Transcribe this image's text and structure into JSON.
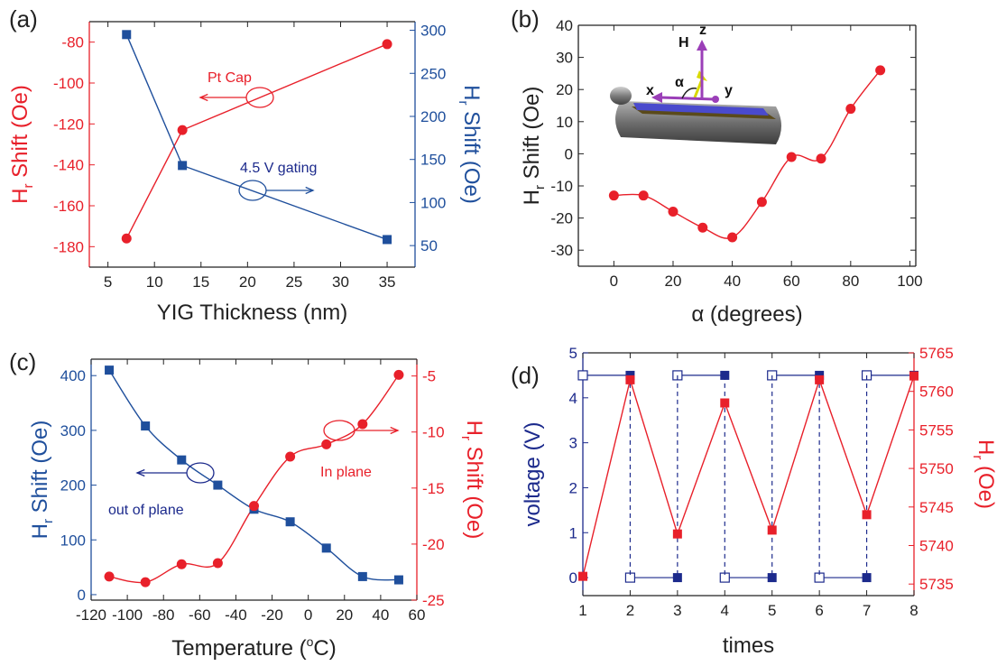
{
  "colors": {
    "red": "#e8202a",
    "blue": "#1f4f9c",
    "navy": "#1c2a8c",
    "black": "#222222"
  },
  "chart_data": [
    {
      "panel": "(a)",
      "type": "line",
      "xlabel": "YIG Thickness (nm)",
      "ylabel_left": {
        "main": "H",
        "sub": "r",
        "rest": " Shift (Oe)"
      },
      "ylabel_right": {
        "main": "H",
        "sub": "r",
        "rest": " Shift (Oe)"
      },
      "xlim": [
        3,
        38
      ],
      "ylim_left": [
        -190,
        -70
      ],
      "ylim_right": [
        25,
        310
      ],
      "xticks": [
        5,
        10,
        15,
        20,
        25,
        30,
        35
      ],
      "yticks_left": [
        -180,
        -160,
        -140,
        -120,
        -100,
        -80
      ],
      "yticks_right": [
        50,
        100,
        150,
        200,
        250,
        300
      ],
      "series": [
        {
          "name": "Pt Cap",
          "axis": "left",
          "marker": "circle",
          "x": [
            7,
            13,
            35
          ],
          "y": [
            -176,
            -123,
            -81
          ]
        },
        {
          "name": "4.5 V gating",
          "axis": "right",
          "marker": "square",
          "x": [
            7,
            13,
            35
          ],
          "y": [
            295,
            143,
            57
          ]
        }
      ],
      "annotations": [
        "Pt Cap",
        "4.5 V gating"
      ]
    },
    {
      "panel": "(b)",
      "type": "scatter",
      "xlabel": "α (degrees)",
      "ylabel": {
        "main": "H",
        "sub": "r",
        "rest": " Shift (Oe)"
      },
      "xlim": [
        -12,
        102
      ],
      "ylim": [
        -35,
        40
      ],
      "xticks": [
        0,
        20,
        40,
        60,
        80,
        100
      ],
      "yticks": [
        -30,
        -20,
        -10,
        0,
        10,
        20,
        30,
        40
      ],
      "series": [
        {
          "marker": "circle",
          "x": [
            0,
            10,
            20,
            30,
            40,
            50,
            60,
            70,
            80,
            90
          ],
          "y": [
            -13,
            -13,
            -18,
            -23,
            -26,
            -15,
            -1,
            -1.5,
            14,
            26
          ]
        }
      ],
      "inset_labels": [
        "H",
        "z",
        "α",
        "x",
        "y"
      ]
    },
    {
      "panel": "(c)",
      "type": "scatter",
      "xlabel": {
        "main": "Temperature (",
        "sup": "o",
        "rest": "C)"
      },
      "ylabel_left": {
        "main": "H",
        "sub": "r",
        "rest": " Shift (Oe)"
      },
      "ylabel_right": {
        "main": "H",
        "sub": "r",
        "rest": " Shift (Oe)"
      },
      "xlim": [
        -120,
        60
      ],
      "ylim_left": [
        -10,
        430
      ],
      "ylim_right": [
        -25,
        -3.5
      ],
      "xticks": [
        -120,
        -100,
        -80,
        -60,
        -40,
        -20,
        0,
        20,
        40,
        60
      ],
      "yticks_left": [
        0,
        100,
        200,
        300,
        400
      ],
      "yticks_right": [
        -25,
        -20,
        -15,
        -10,
        -5
      ],
      "series": [
        {
          "name": "out of plane",
          "axis": "left",
          "marker": "square",
          "x": [
            -110,
            -90,
            -70,
            -50,
            -30,
            -10,
            10,
            30,
            50
          ],
          "y": [
            410,
            308,
            246,
            200,
            156,
            133,
            85,
            33,
            27
          ]
        },
        {
          "name": "In plane",
          "axis": "right",
          "marker": "circle",
          "x": [
            -110,
            -90,
            -70,
            -50,
            -30,
            -10,
            10,
            30,
            50
          ],
          "y": [
            -22.9,
            -23.4,
            -21.8,
            -21.7,
            -16.6,
            -12.2,
            -11.1,
            -9.3,
            -4.9
          ]
        }
      ],
      "annotations": [
        "out of plane",
        "In plane"
      ]
    },
    {
      "panel": "(d)",
      "type": "line",
      "xlabel": "times",
      "ylabel_left": "voltage (V)",
      "ylabel_right": {
        "main": "H",
        "sub": "r",
        "rest": " (Oe)"
      },
      "xlim": [
        1,
        8
      ],
      "ylim_left": [
        -0.4,
        5
      ],
      "ylim_right": [
        5733.5,
        5765
      ],
      "xticks": [
        1,
        2,
        3,
        4,
        5,
        6,
        7,
        8
      ],
      "yticks_left": [
        0,
        1,
        2,
        3,
        4,
        5
      ],
      "yticks_right": [
        5735,
        5740,
        5745,
        5750,
        5755,
        5760,
        5765
      ],
      "series": [
        {
          "name": "voltage",
          "axis": "left",
          "marker": "square",
          "high": 4.5,
          "low": 0,
          "high_segments": [
            [
              1,
              2
            ],
            [
              3,
              4
            ],
            [
              5,
              6
            ],
            [
              7,
              8
            ]
          ],
          "low_segments": [
            [
              2,
              3
            ],
            [
              4,
              5
            ],
            [
              6,
              7
            ]
          ]
        },
        {
          "name": "Hr",
          "axis": "right",
          "marker": "square",
          "x": [
            1,
            2,
            3,
            4,
            5,
            6,
            7,
            8
          ],
          "y": [
            5736,
            5761.5,
            5741.5,
            5758.5,
            5742,
            5761.5,
            5744,
            5762
          ]
        }
      ]
    }
  ]
}
